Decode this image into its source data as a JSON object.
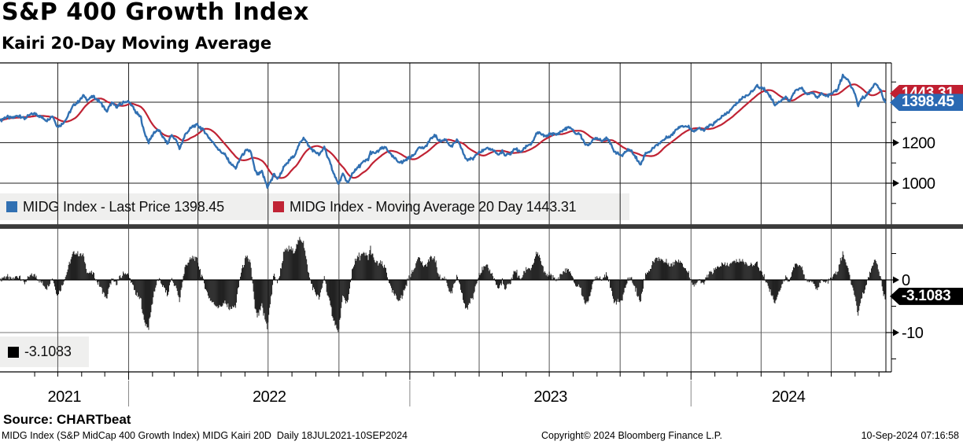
{
  "header": {
    "title": "S&P 400 Growth Index",
    "subtitle": "Kairi 20-Day Moving Average"
  },
  "legend_top": [
    {
      "swatch_color": "#3170b2",
      "label": "MIDG Index - Last Price 1398.45"
    },
    {
      "swatch_color": "#c02334",
      "label": "MIDG Index - Moving Average 20 Day 1443.31"
    }
  ],
  "legend_bottom": [
    {
      "swatch_color": "#000000",
      "label": "-3.1083"
    }
  ],
  "tags": {
    "ma": {
      "label": "1443.31",
      "value": 1443.31,
      "color": "#c01f31"
    },
    "last": {
      "label": "1398.45",
      "value": 1398.45,
      "color": "#2a69b3"
    },
    "kairi": {
      "label": "-3.1083",
      "value": -3.1083,
      "color": "#000000"
    }
  },
  "footer": {
    "source": "Source: CHARTbeat",
    "description": "MIDG Index (S&P MidCap 400 Growth Index) MIDG Kairi 20D  Daily 18JUL2021-10SEP2024",
    "copyright": "Copyright© 2024 Bloomberg Finance L.P.",
    "timestamp": "10-Sep-2024 07:16:58"
  },
  "chart_data": {
    "type": "line+bar",
    "title": "S&P 400 Growth Index",
    "subtitle": "Kairi 20-Day Moving Average",
    "x_range": [
      "2021-07-18",
      "2024-09-10"
    ],
    "x_year_labels": [
      "2021",
      "2022",
      "2023",
      "2024"
    ],
    "x_gridlines": "quarterly",
    "x_ticks": "monthly",
    "panels": [
      {
        "name": "price",
        "type": "line",
        "ylim": [
          790,
          1594
        ],
        "gridlines_h": [
          1400,
          1200,
          1000
        ],
        "yticks_major": [
          1200,
          1000
        ],
        "yticks_minor": [
          1500,
          1300,
          1100,
          900
        ],
        "series": [
          {
            "name": "MIDG Index - Last Price",
            "color": "#3170b2",
            "last_value": 1398.45
          },
          {
            "name": "MIDG Index - Moving Average 20 Day",
            "color": "#c02334",
            "window_days": 20,
            "derived": "sma20_of_last_price",
            "last_value": 1443.31
          }
        ],
        "points": [
          [
            "2021-07-18",
            1308
          ],
          [
            "2021-07-26",
            1328
          ],
          [
            "2021-08-03",
            1322
          ],
          [
            "2021-08-12",
            1336
          ],
          [
            "2021-08-19",
            1318
          ],
          [
            "2021-08-27",
            1341
          ],
          [
            "2021-09-03",
            1343
          ],
          [
            "2021-09-10",
            1324
          ],
          [
            "2021-09-17",
            1312
          ],
          [
            "2021-09-24",
            1332
          ],
          [
            "2021-10-01",
            1278
          ],
          [
            "2021-10-06",
            1290
          ],
          [
            "2021-10-12",
            1318
          ],
          [
            "2021-10-21",
            1381
          ],
          [
            "2021-10-28",
            1402
          ],
          [
            "2021-11-03",
            1433
          ],
          [
            "2021-11-09",
            1412
          ],
          [
            "2021-11-16",
            1428
          ],
          [
            "2021-11-22",
            1410
          ],
          [
            "2021-11-29",
            1383
          ],
          [
            "2021-12-03",
            1351
          ],
          [
            "2021-12-10",
            1398
          ],
          [
            "2021-12-16",
            1378
          ],
          [
            "2021-12-22",
            1390
          ],
          [
            "2021-12-29",
            1406
          ],
          [
            "2022-01-04",
            1391
          ],
          [
            "2022-01-10",
            1352
          ],
          [
            "2022-01-17",
            1323
          ],
          [
            "2022-01-21",
            1252
          ],
          [
            "2022-01-27",
            1203
          ],
          [
            "2022-02-03",
            1251
          ],
          [
            "2022-02-09",
            1262
          ],
          [
            "2022-02-14",
            1231
          ],
          [
            "2022-02-21",
            1193
          ],
          [
            "2022-02-25",
            1239
          ],
          [
            "2022-03-04",
            1210
          ],
          [
            "2022-03-08",
            1169
          ],
          [
            "2022-03-16",
            1245
          ],
          [
            "2022-03-25",
            1281
          ],
          [
            "2022-03-31",
            1287
          ],
          [
            "2022-04-08",
            1262
          ],
          [
            "2022-04-14",
            1232
          ],
          [
            "2022-04-22",
            1195
          ],
          [
            "2022-04-29",
            1161
          ],
          [
            "2022-05-06",
            1140
          ],
          [
            "2022-05-12",
            1104
          ],
          [
            "2022-05-20",
            1073
          ],
          [
            "2022-05-27",
            1131
          ],
          [
            "2022-06-02",
            1158
          ],
          [
            "2022-06-08",
            1162
          ],
          [
            "2022-06-14",
            1065
          ],
          [
            "2022-06-17",
            1042
          ],
          [
            "2022-06-23",
            1055
          ],
          [
            "2022-06-30",
            983
          ],
          [
            "2022-07-06",
            1018
          ],
          [
            "2022-07-08",
            1046
          ],
          [
            "2022-07-14",
            1021
          ],
          [
            "2022-07-21",
            1076
          ],
          [
            "2022-07-29",
            1113
          ],
          [
            "2022-08-05",
            1142
          ],
          [
            "2022-08-11",
            1196
          ],
          [
            "2022-08-16",
            1227
          ],
          [
            "2022-08-24",
            1178
          ],
          [
            "2022-08-30",
            1156
          ],
          [
            "2022-09-06",
            1141
          ],
          [
            "2022-09-12",
            1180
          ],
          [
            "2022-09-16",
            1131
          ],
          [
            "2022-09-23",
            1063
          ],
          [
            "2022-09-30",
            994
          ],
          [
            "2022-10-06",
            1043
          ],
          [
            "2022-10-13",
            999
          ],
          [
            "2022-10-18",
            1048
          ],
          [
            "2022-10-25",
            1075
          ],
          [
            "2022-11-01",
            1102
          ],
          [
            "2022-11-08",
            1118
          ],
          [
            "2022-11-11",
            1152
          ],
          [
            "2022-11-16",
            1146
          ],
          [
            "2022-11-25",
            1170
          ],
          [
            "2022-12-01",
            1176
          ],
          [
            "2022-12-07",
            1142
          ],
          [
            "2022-12-16",
            1108
          ],
          [
            "2022-12-22",
            1102
          ],
          [
            "2022-12-29",
            1122
          ],
          [
            "2023-01-06",
            1138
          ],
          [
            "2023-01-12",
            1178
          ],
          [
            "2023-01-20",
            1172
          ],
          [
            "2023-01-27",
            1212
          ],
          [
            "2023-02-02",
            1237
          ],
          [
            "2023-02-10",
            1205
          ],
          [
            "2023-02-16",
            1218
          ],
          [
            "2023-02-24",
            1180
          ],
          [
            "2023-03-03",
            1211
          ],
          [
            "2023-03-09",
            1175
          ],
          [
            "2023-03-13",
            1130
          ],
          [
            "2023-03-17",
            1116
          ],
          [
            "2023-03-24",
            1122
          ],
          [
            "2023-03-31",
            1155
          ],
          [
            "2023-04-06",
            1160
          ],
          [
            "2023-04-14",
            1171
          ],
          [
            "2023-04-20",
            1163
          ],
          [
            "2023-04-26",
            1139
          ],
          [
            "2023-05-01",
            1158
          ],
          [
            "2023-05-04",
            1136
          ],
          [
            "2023-05-12",
            1146
          ],
          [
            "2023-05-18",
            1173
          ],
          [
            "2023-05-24",
            1151
          ],
          [
            "2023-06-02",
            1185
          ],
          [
            "2023-06-08",
            1196
          ],
          [
            "2023-06-16",
            1252
          ],
          [
            "2023-06-26",
            1229
          ],
          [
            "2023-07-03",
            1245
          ],
          [
            "2023-07-10",
            1240
          ],
          [
            "2023-07-19",
            1262
          ],
          [
            "2023-07-27",
            1277
          ],
          [
            "2023-08-04",
            1245
          ],
          [
            "2023-08-10",
            1242
          ],
          [
            "2023-08-18",
            1185
          ],
          [
            "2023-08-25",
            1202
          ],
          [
            "2023-08-31",
            1226
          ],
          [
            "2023-09-08",
            1211
          ],
          [
            "2023-09-14",
            1228
          ],
          [
            "2023-09-22",
            1165
          ],
          [
            "2023-09-27",
            1148
          ],
          [
            "2023-10-04",
            1135
          ],
          [
            "2023-10-11",
            1167
          ],
          [
            "2023-10-17",
            1155
          ],
          [
            "2023-10-23",
            1118
          ],
          [
            "2023-10-27",
            1090
          ],
          [
            "2023-11-03",
            1148
          ],
          [
            "2023-11-10",
            1160
          ],
          [
            "2023-11-14",
            1178
          ],
          [
            "2023-11-22",
            1202
          ],
          [
            "2023-12-01",
            1226
          ],
          [
            "2023-12-08",
            1240
          ],
          [
            "2023-12-14",
            1270
          ],
          [
            "2023-12-20",
            1285
          ],
          [
            "2023-12-28",
            1280
          ],
          [
            "2024-01-05",
            1259
          ],
          [
            "2024-01-11",
            1270
          ],
          [
            "2024-01-17",
            1262
          ],
          [
            "2024-01-24",
            1280
          ],
          [
            "2024-02-01",
            1298
          ],
          [
            "2024-02-09",
            1324
          ],
          [
            "2024-02-15",
            1340
          ],
          [
            "2024-02-22",
            1363
          ],
          [
            "2024-02-29",
            1394
          ],
          [
            "2024-03-07",
            1420
          ],
          [
            "2024-03-14",
            1434
          ],
          [
            "2024-03-21",
            1458
          ],
          [
            "2024-03-27",
            1478
          ],
          [
            "2024-04-03",
            1470
          ],
          [
            "2024-04-09",
            1450
          ],
          [
            "2024-04-16",
            1410
          ],
          [
            "2024-04-19",
            1388
          ],
          [
            "2024-04-29",
            1415
          ],
          [
            "2024-05-03",
            1425
          ],
          [
            "2024-05-08",
            1405
          ],
          [
            "2024-05-15",
            1455
          ],
          [
            "2024-05-23",
            1470
          ],
          [
            "2024-05-31",
            1440
          ],
          [
            "2024-06-06",
            1448
          ],
          [
            "2024-06-12",
            1425
          ],
          [
            "2024-06-18",
            1442
          ],
          [
            "2024-06-24",
            1428
          ],
          [
            "2024-07-01",
            1440
          ],
          [
            "2024-07-09",
            1462
          ],
          [
            "2024-07-16",
            1531
          ],
          [
            "2024-07-23",
            1508
          ],
          [
            "2024-07-26",
            1480
          ],
          [
            "2024-07-31",
            1450
          ],
          [
            "2024-08-05",
            1376
          ],
          [
            "2024-08-08",
            1412
          ],
          [
            "2024-08-14",
            1430
          ],
          [
            "2024-08-19",
            1448
          ],
          [
            "2024-08-26",
            1490
          ],
          [
            "2024-08-30",
            1482
          ],
          [
            "2024-09-04",
            1452
          ],
          [
            "2024-09-06",
            1420
          ],
          [
            "2024-09-10",
            1398.45
          ]
        ]
      },
      {
        "name": "kairi",
        "type": "bar",
        "ylim": [
          9.8,
          -17.5
        ],
        "gridlines_h": [
          0,
          -10
        ],
        "yticks_major": [
          0,
          -10
        ],
        "yticks_minor": [
          5,
          -5,
          -15
        ],
        "bar_color": "#000000",
        "derived": "100*(last_price-sma20)/sma20",
        "last_value": -3.1083
      }
    ]
  }
}
